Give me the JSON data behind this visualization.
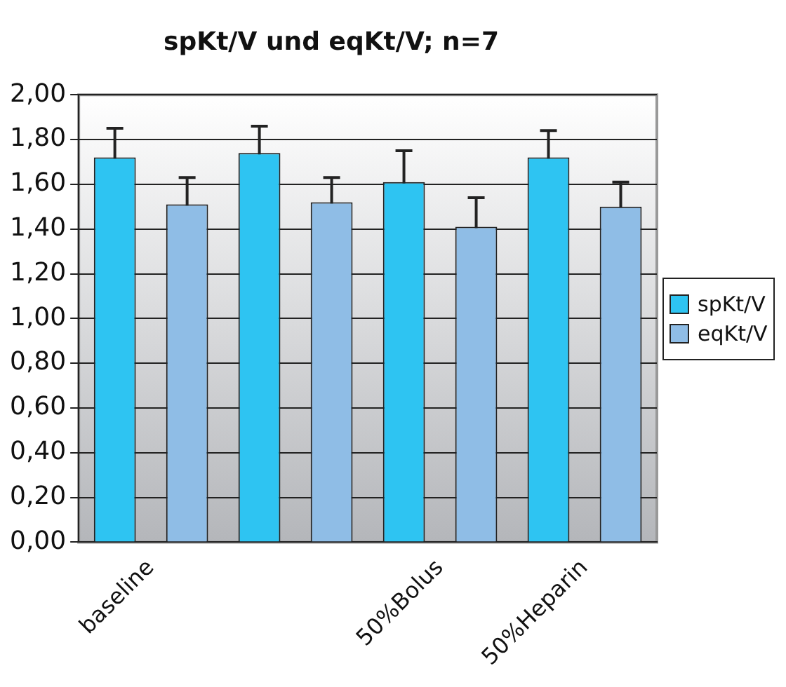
{
  "chart_data": {
    "type": "bar",
    "title": "spKt/V und eqKt/V; n=7",
    "categories": [
      "baseline",
      null,
      "50%Bolus",
      "50%Heparin"
    ],
    "series": [
      {
        "name": "spKt/V",
        "color": "#2ec4f2",
        "values": [
          1.72,
          1.74,
          1.61,
          1.72
        ],
        "errors": [
          0.13,
          0.12,
          0.14,
          0.12
        ]
      },
      {
        "name": "eqKt/V",
        "color": "#8fbde6",
        "values": [
          1.51,
          1.52,
          1.41,
          1.5
        ],
        "errors": [
          0.12,
          0.11,
          0.13,
          0.11
        ]
      }
    ],
    "ylim": [
      0,
      2
    ],
    "yticks": [
      {
        "value": 0,
        "label": "0,00"
      },
      {
        "value": 0.2,
        "label": "0,20"
      },
      {
        "value": 0.4,
        "label": "0,40"
      },
      {
        "value": 0.6,
        "label": "0,60"
      },
      {
        "value": 0.8,
        "label": "0,80"
      },
      {
        "value": 1,
        "label": "1,00"
      },
      {
        "value": 1.2,
        "label": "1,20"
      },
      {
        "value": 1.4,
        "label": "1,40"
      },
      {
        "value": 1.6,
        "label": "1,60"
      },
      {
        "value": 1.8,
        "label": "1,80"
      },
      {
        "value": 2,
        "label": "2,00"
      }
    ],
    "grid": "y",
    "legend": "right"
  }
}
